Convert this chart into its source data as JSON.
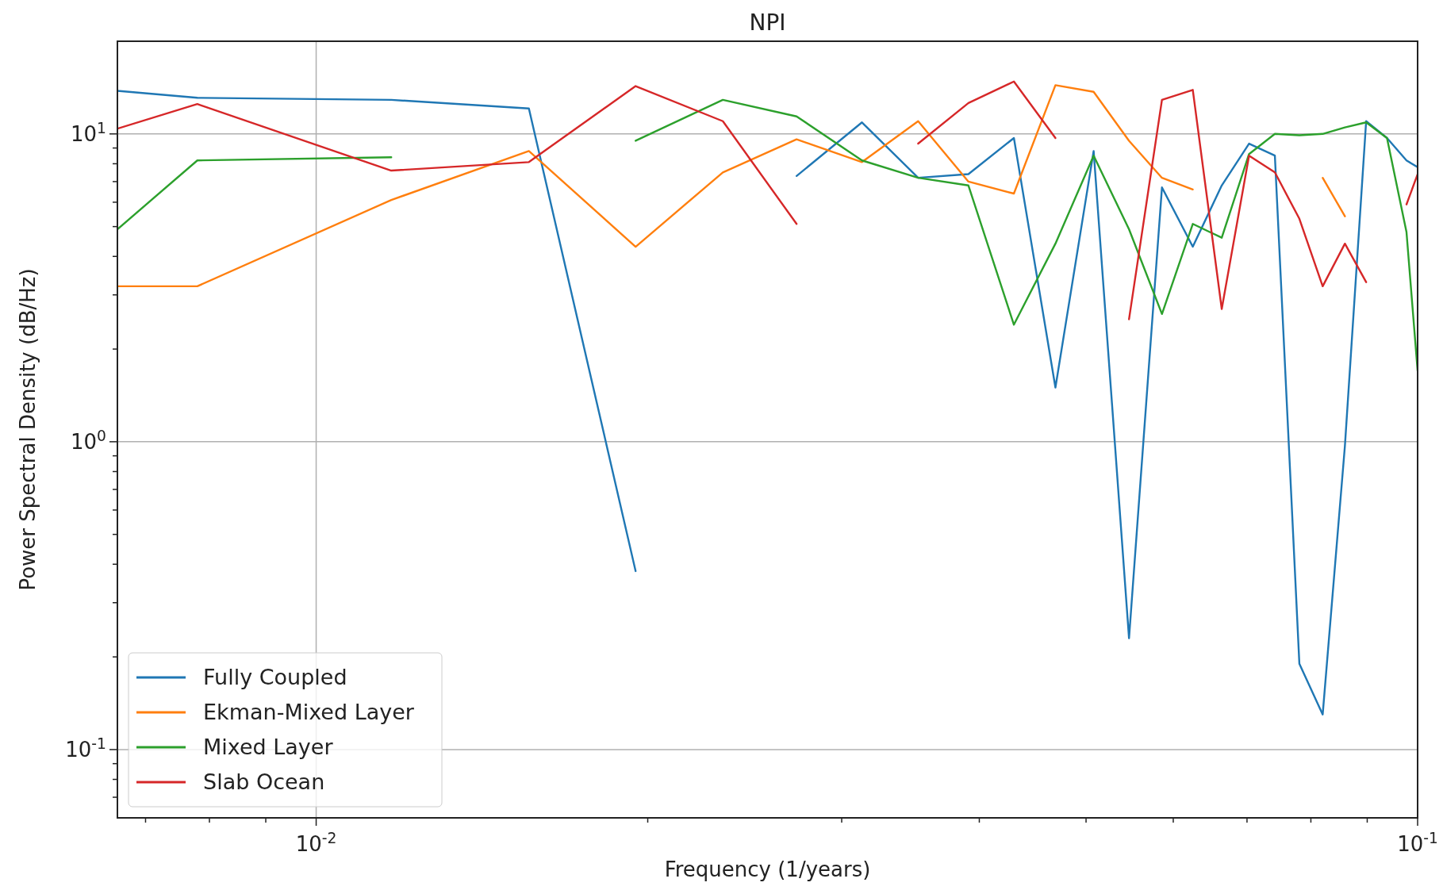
{
  "chart_data": {
    "type": "line",
    "title": "NPI",
    "xlabel": "Frequency (1/years)",
    "ylabel": "Power Spectral Density (dB/Hz)",
    "log": "xy",
    "grid": true,
    "legend": "bottom left",
    "line_style": "solid",
    "marker": "none",
    "xlim": [
      0.0066,
      0.1
    ],
    "ylim": [
      0.06,
      20
    ],
    "xticks": [
      {
        "value": 0.007,
        "label": null
      },
      {
        "value": 0.008,
        "label": null
      },
      {
        "value": 0.009,
        "label": null
      },
      {
        "value": 0.01,
        "label": "10$^{-2}$"
      },
      {
        "value": 0.02,
        "label": null
      },
      {
        "value": 0.03,
        "label": null
      },
      {
        "value": 0.04,
        "label": null
      },
      {
        "value": 0.05,
        "label": null
      },
      {
        "value": 0.06,
        "label": null
      },
      {
        "value": 0.07,
        "label": null
      },
      {
        "value": 0.08,
        "label": null
      },
      {
        "value": 0.09,
        "label": null
      },
      {
        "value": 0.1,
        "label": "10$^{-1}$"
      }
    ],
    "yticks": [
      {
        "value": 0.07,
        "label": null
      },
      {
        "value": 0.08,
        "label": null
      },
      {
        "value": 0.09,
        "label": null
      },
      {
        "value": 0.1,
        "label": "10$^{-1}$"
      },
      {
        "value": 0.2,
        "label": null
      },
      {
        "value": 0.3,
        "label": null
      },
      {
        "value": 0.4,
        "label": null
      },
      {
        "value": 0.5,
        "label": null
      },
      {
        "value": 0.6,
        "label": null
      },
      {
        "value": 0.7,
        "label": null
      },
      {
        "value": 0.8,
        "label": null
      },
      {
        "value": 0.9,
        "label": null
      },
      {
        "value": 1,
        "label": "10$^{0}$"
      },
      {
        "value": 2,
        "label": null
      },
      {
        "value": 3,
        "label": null
      },
      {
        "value": 4,
        "label": null
      },
      {
        "value": 5,
        "label": null
      },
      {
        "value": 6,
        "label": null
      },
      {
        "value": 7,
        "label": null
      },
      {
        "value": 8,
        "label": null
      },
      {
        "value": 9,
        "label": null
      },
      {
        "value": 10,
        "label": "10$^{1}$"
      }
    ],
    "x": [
      0.0066,
      0.0078,
      0.0117,
      0.0156,
      0.0195,
      0.0234,
      0.0273,
      0.0313,
      0.0352,
      0.0391,
      0.043,
      0.0469,
      0.0508,
      0.0547,
      0.0586,
      0.0625,
      0.0664,
      0.0703,
      0.0742,
      0.0781,
      0.082,
      0.0859,
      0.0898,
      0.0938,
      0.0977,
      0.1
    ],
    "series": [
      {
        "name": "Fully Coupled",
        "color": "#1f77b4",
        "values": [
          13.8,
          13.1,
          12.9,
          12.1,
          0.38,
          null,
          7.3,
          10.9,
          7.2,
          7.4,
          9.7,
          1.5,
          8.8,
          0.23,
          6.7,
          4.3,
          6.8,
          9.3,
          8.5,
          0.19,
          0.13,
          0.97,
          11.0,
          9.7,
          8.2,
          7.8
        ]
      },
      {
        "name": "Ekman-Mixed Layer",
        "color": "#ff7f0e",
        "values": [
          3.2,
          3.2,
          6.1,
          8.8,
          4.3,
          7.5,
          9.6,
          8.1,
          11.0,
          7.0,
          6.4,
          14.4,
          13.7,
          9.5,
          7.2,
          6.6,
          null,
          null,
          null,
          null,
          7.2,
          5.4,
          null,
          null,
          null,
          null
        ]
      },
      {
        "name": "Mixed Layer",
        "color": "#2ca02c",
        "values": [
          4.9,
          8.2,
          8.4,
          null,
          9.5,
          12.9,
          11.4,
          8.2,
          7.2,
          6.8,
          2.4,
          4.4,
          8.5,
          4.9,
          2.6,
          5.1,
          4.6,
          8.6,
          10.0,
          9.9,
          10.0,
          10.5,
          10.9,
          9.7,
          4.8,
          1.7
        ]
      },
      {
        "name": "Slab Ocean",
        "color": "#d62728",
        "values": [
          10.4,
          12.5,
          7.6,
          8.1,
          14.3,
          11.0,
          5.1,
          null,
          9.3,
          12.6,
          14.8,
          9.7,
          null,
          2.5,
          12.9,
          13.9,
          2.7,
          8.5,
          7.5,
          5.3,
          3.2,
          4.4,
          3.3,
          null,
          5.9,
          7.4
        ]
      }
    ]
  }
}
